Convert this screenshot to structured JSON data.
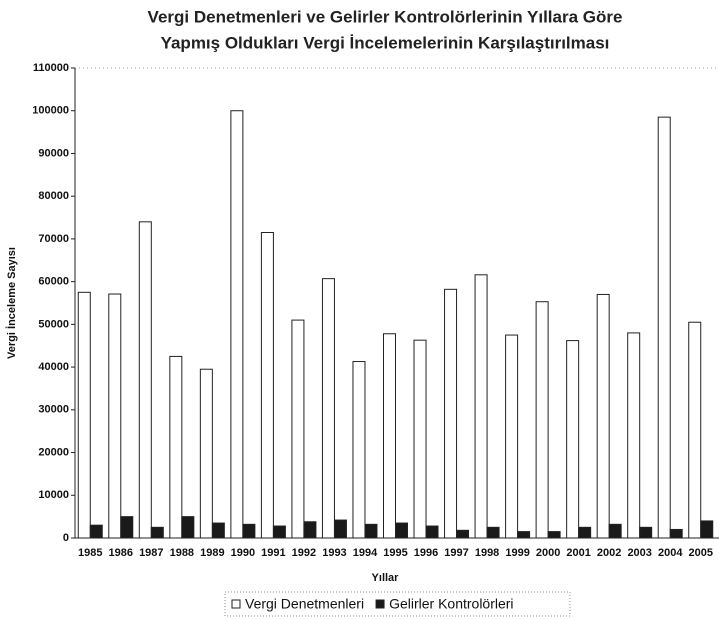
{
  "chart_data": {
    "type": "bar",
    "title": [
      "Vergi Denetmenleri ve Gelirler Kontrolörlerinin Yıllara Göre",
      "Yapmış Oldukları Vergi İncelemelerinin Karşılaştırılması"
    ],
    "x_label": "Yıllar",
    "y_label": "Vergi İnceleme Sayısı",
    "categories": [
      "1985",
      "1986",
      "1987",
      "1988",
      "1989",
      "1990",
      "1991",
      "1992",
      "1993",
      "1994",
      "1995",
      "1996",
      "1997",
      "1998",
      "1999",
      "2000",
      "2001",
      "2002",
      "2003",
      "2004",
      "2005"
    ],
    "series": [
      {
        "name": "Vergi Denetmenleri",
        "color": "#ffffff",
        "values": [
          57500,
          57100,
          74000,
          42500,
          39500,
          100000,
          71500,
          51000,
          60700,
          41300,
          47800,
          46300,
          58200,
          61600,
          47500,
          55300,
          46200,
          57000,
          48000,
          98500,
          50500
        ]
      },
      {
        "name": "Gelirler Kontrolörleri",
        "color": "#1a1a1a",
        "values": [
          3000,
          5000,
          2500,
          5000,
          3500,
          3200,
          2800,
          3800,
          4200,
          3200,
          3500,
          2800,
          1800,
          2500,
          1500,
          1500,
          2500,
          3200,
          2500,
          2000,
          4000
        ]
      }
    ],
    "ylim": [
      0,
      110000
    ],
    "yticks": [
      0,
      10000,
      20000,
      30000,
      40000,
      50000,
      60000,
      70000,
      80000,
      90000,
      100000,
      110000
    ],
    "grid": false,
    "legend": "bottom"
  }
}
